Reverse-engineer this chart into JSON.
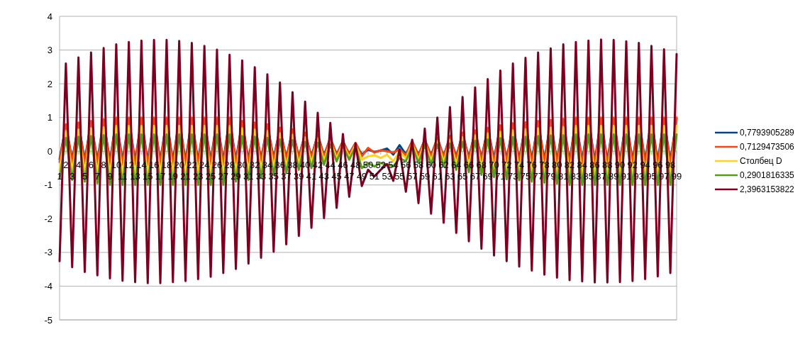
{
  "chart_data": {
    "type": "line",
    "categories": [
      "1",
      "2",
      "3",
      "4",
      "5",
      "6",
      "7",
      "8",
      "9",
      "10",
      "11",
      "12",
      "13",
      "14",
      "15",
      "16",
      "17",
      "18",
      "19",
      "20",
      "21",
      "22",
      "23",
      "24",
      "25",
      "26",
      "27",
      "28",
      "29",
      "30",
      "31",
      "32",
      "33",
      "34",
      "35",
      "36",
      "37",
      "38",
      "39",
      "40",
      "41",
      "42",
      "43",
      "44",
      "45",
      "46",
      "47",
      "48",
      "49",
      "50",
      "51",
      "52",
      "53",
      "54",
      "55",
      "56",
      "57",
      "58",
      "59",
      "60",
      "61",
      "62",
      "63",
      "64",
      "65",
      "66",
      "67",
      "68",
      "69",
      "70",
      "71",
      "72",
      "73",
      "74",
      "75",
      "76",
      "77",
      "78",
      "79",
      "80",
      "81",
      "82",
      "83",
      "84",
      "85",
      "86",
      "87",
      "88",
      "89",
      "90",
      "91",
      "92",
      "93",
      "94",
      "95",
      "96",
      "97",
      "98",
      "99"
    ],
    "ylim": [
      -5,
      4
    ],
    "yticks": [
      -5,
      -4,
      -3,
      -2,
      -1,
      0,
      1,
      2,
      3,
      4
    ],
    "grid": "y",
    "legend": "right",
    "marker": "none",
    "line_style": "solid",
    "series": [
      {
        "name": "0,7793905289",
        "color": "#004586",
        "values": [
          -0.24,
          0.78,
          -0.26,
          0.82,
          -0.27,
          0.87,
          -0.29,
          0.92,
          -0.3,
          0.97,
          -0.3,
          0.97,
          -0.3,
          0.97,
          -0.3,
          0.97,
          -0.3,
          0.97,
          -0.3,
          0.97,
          -0.3,
          0.97,
          -0.3,
          0.97,
          -0.3,
          0.97,
          -0.3,
          0.97,
          -0.27,
          0.87,
          -0.26,
          0.82,
          -0.24,
          0.78,
          -0.21,
          0.68,
          -0.2,
          0.63,
          -0.17,
          0.53,
          -0.15,
          0.49,
          -0.12,
          0.39,
          -0.09,
          0.29,
          -0.08,
          0.24,
          -0.1,
          0.05,
          -0.02,
          0.02,
          0.08,
          -0.1,
          0.18,
          -0.09,
          0.29,
          -0.11,
          0.34,
          -0.12,
          0.39,
          -0.14,
          0.44,
          -0.17,
          0.53,
          -0.19,
          0.6,
          -0.21,
          0.68,
          -0.23,
          0.75,
          -0.25,
          0.81,
          -0.26,
          0.83,
          -0.27,
          0.87,
          -0.28,
          0.9,
          -0.29,
          0.93,
          -0.3,
          0.97,
          -0.3,
          0.97,
          -0.3,
          0.97,
          -0.3,
          0.97,
          -0.3,
          0.97,
          -0.3,
          0.97,
          -0.3,
          0.97,
          -0.3,
          0.97,
          -0.3,
          0.97
        ]
      },
      {
        "name": "0,7129473506",
        "color": "#ff420e",
        "values": [
          -0.32,
          0.8,
          -0.34,
          0.85,
          -0.36,
          0.9,
          -0.38,
          0.95,
          -0.4,
          1,
          -0.4,
          1,
          -0.4,
          1,
          -0.4,
          1,
          -0.4,
          1,
          -0.4,
          1,
          -0.4,
          1,
          -0.4,
          1,
          -0.4,
          1,
          -0.4,
          1,
          -0.36,
          0.9,
          -0.34,
          0.85,
          -0.32,
          0.8,
          -0.28,
          0.7,
          -0.26,
          0.65,
          -0.22,
          0.55,
          -0.2,
          0.5,
          -0.16,
          0.4,
          -0.12,
          0.3,
          -0.1,
          0.25,
          -0.15,
          0.1,
          -0.04,
          0.03,
          0,
          -0.04,
          0.06,
          -0.12,
          0.3,
          -0.14,
          0.35,
          -0.16,
          0.4,
          -0.18,
          0.45,
          -0.22,
          0.55,
          -0.25,
          0.62,
          -0.28,
          0.7,
          -0.31,
          0.77,
          -0.33,
          0.83,
          -0.34,
          0.86,
          -0.36,
          0.9,
          -0.37,
          0.93,
          -0.38,
          0.96,
          -0.4,
          1,
          -0.4,
          1,
          -0.4,
          1,
          -0.4,
          1,
          -0.4,
          1,
          -0.4,
          1,
          -0.4,
          1,
          -0.4,
          1,
          -0.4,
          1
        ]
      },
      {
        "name": "Столбец D",
        "color": "#ffd320",
        "values": [
          -0.56,
          0.6,
          -0.6,
          0.64,
          -0.63,
          0.68,
          -0.67,
          0.71,
          -0.7,
          0.75,
          -0.7,
          0.75,
          -0.7,
          0.75,
          -0.7,
          0.75,
          -0.7,
          0.75,
          -0.7,
          0.75,
          -0.7,
          0.75,
          -0.7,
          0.75,
          -0.7,
          0.75,
          -0.7,
          0.75,
          -0.63,
          0.68,
          -0.6,
          0.64,
          -0.56,
          0.6,
          -0.49,
          0.53,
          -0.46,
          0.49,
          -0.39,
          0.41,
          -0.35,
          0.38,
          -0.28,
          0.3,
          -0.21,
          0.23,
          -0.18,
          0.19,
          -0.25,
          -0.15,
          -0.12,
          -0.2,
          -0.1,
          -0.3,
          0,
          -0.21,
          0.23,
          -0.25,
          0.26,
          -0.28,
          0.3,
          -0.32,
          0.34,
          -0.39,
          0.41,
          -0.43,
          0.47,
          -0.49,
          0.53,
          -0.54,
          0.58,
          -0.58,
          0.62,
          -0.6,
          0.65,
          -0.63,
          0.68,
          -0.65,
          0.7,
          -0.67,
          0.72,
          -0.7,
          0.75,
          -0.7,
          0.75,
          -0.7,
          0.75,
          -0.7,
          0.75,
          -0.7,
          0.75,
          -0.7,
          0.75,
          -0.7,
          0.75,
          -0.7,
          0.75,
          -0.7,
          0.75
        ]
      },
      {
        "name": "0,2901816335",
        "color": "#579d1c",
        "values": [
          -0.8,
          0.4,
          -0.85,
          0.43,
          -0.9,
          0.45,
          -0.95,
          0.48,
          -1,
          0.5,
          -1,
          0.5,
          -1,
          0.5,
          -1,
          0.5,
          -1,
          0.5,
          -1,
          0.5,
          -1,
          0.5,
          -1,
          0.5,
          -1,
          0.5,
          -1,
          0.5,
          -0.9,
          0.45,
          -0.85,
          0.43,
          -0.8,
          0.4,
          -0.7,
          0.35,
          -0.65,
          0.33,
          -0.55,
          0.28,
          -0.5,
          0.25,
          -0.4,
          0.2,
          -0.3,
          0.15,
          -0.25,
          0.13,
          -0.5,
          -0.35,
          -0.45,
          -0.35,
          -0.4,
          -0.45,
          -0.2,
          -0.3,
          0.15,
          -0.35,
          0.18,
          -0.4,
          0.2,
          -0.45,
          0.23,
          -0.55,
          0.28,
          -0.62,
          0.31,
          -0.7,
          0.35,
          -0.77,
          0.39,
          -0.83,
          0.42,
          -0.86,
          0.43,
          -0.9,
          0.45,
          -0.93,
          0.47,
          -0.96,
          0.48,
          -1,
          0.5,
          -1,
          0.5,
          -1,
          0.5,
          -1,
          0.5,
          -1,
          0.5,
          -1,
          0.5,
          -1,
          0.5,
          -1,
          0.5,
          -1,
          0.5
        ]
      },
      {
        "name": "2,3963153822",
        "color": "#7e0021",
        "values": [
          -3.26,
          2.6,
          -3.44,
          2.78,
          -3.58,
          2.93,
          -3.68,
          3.06,
          -3.77,
          3.17,
          -3.84,
          3.24,
          -3.88,
          3.28,
          -3.91,
          3.3,
          -3.91,
          3.3,
          -3.88,
          3.27,
          -3.85,
          3.21,
          -3.79,
          3.12,
          -3.72,
          3.01,
          -3.61,
          2.86,
          -3.49,
          2.69,
          -3.33,
          2.49,
          -3.16,
          2.28,
          -2.98,
          2.04,
          -2.76,
          1.75,
          -2.51,
          1.47,
          -2.27,
          1.14,
          -1.98,
          0.84,
          -1.68,
          0.51,
          -1.35,
          0.23,
          -1.03,
          -0.55,
          -0.75,
          -0.55,
          -0.38,
          -0.88,
          0.06,
          -1.2,
          0.34,
          -1.54,
          0.67,
          -1.85,
          1,
          -2.12,
          1.31,
          -2.42,
          1.61,
          -2.67,
          1.89,
          -2.89,
          2.14,
          -3.09,
          2.39,
          -3.26,
          2.6,
          -3.42,
          2.77,
          -3.54,
          2.93,
          -3.66,
          3.05,
          -3.75,
          3.17,
          -3.82,
          3.24,
          -3.86,
          3.28,
          -3.89,
          3.31,
          -3.89,
          3.3,
          -3.88,
          3.26,
          -3.85,
          3.21,
          -3.79,
          3.12,
          -3.71,
          3.02,
          -3.61,
          2.88
        ]
      }
    ]
  }
}
